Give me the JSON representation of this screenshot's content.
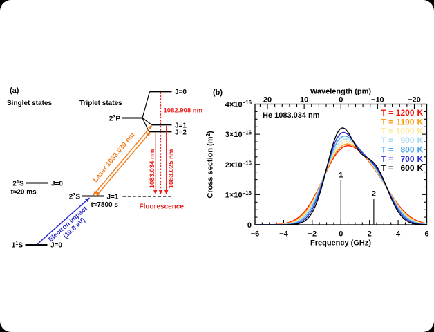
{
  "figure": {
    "background": "#ffffff",
    "outer_background": "#000000"
  },
  "panel_a": {
    "label": "(a)",
    "singlet_header": "Singlet states",
    "triplet_header": "Triplet states",
    "levels": {
      "ground": {
        "term": "1^1^S",
        "j": "J=0"
      },
      "singlet_2s": {
        "term": "2^1^S",
        "j": "J=0",
        "lifetime": "t≈20 ms"
      },
      "triplet_2s": {
        "term": "2^3^S",
        "j": "J=1",
        "lifetime": "t≈7800 s"
      },
      "triplet_2p": {
        "term": "2^3^P",
        "sublevels": [
          "J=0",
          "J=1",
          "J=2"
        ]
      }
    },
    "transitions": {
      "electron_impact": {
        "label_line1": "Electron impact",
        "label_line2": "(19.8 eV)",
        "color": "#2424cc"
      },
      "laser": {
        "label": "Laser 1083.030 nm",
        "color": "#f07d1d"
      },
      "line_908": {
        "label": "1082.908 nm",
        "color": "#e8211c"
      },
      "line_034": {
        "label": "1083.034 nm",
        "color": "#e8211c"
      },
      "line_025": {
        "label": "1083.025 nm",
        "color": "#e8211c"
      },
      "fluorescence": {
        "label": "Fluorescence",
        "color": "#e8211c"
      }
    }
  },
  "panel_b": {
    "label": "(b)",
    "annotation": "He 1083.034 nm",
    "top_axis": {
      "title": "Wavelength (pm)",
      "ticks": [
        {
          "value": 20,
          "label": "20"
        },
        {
          "value": 10,
          "label": "10"
        },
        {
          "value": 0,
          "label": "0"
        },
        {
          "value": -10,
          "label": "−10"
        },
        {
          "value": -20,
          "label": "−20"
        }
      ],
      "pm_per_GHz": -3.899
    },
    "bottom_axis": {
      "title": "Frequency (GHz)",
      "ticks": [
        {
          "value": -6,
          "label": "−6"
        },
        {
          "value": -4,
          "label": "−4"
        },
        {
          "value": -2,
          "label": "−2"
        },
        {
          "value": 0,
          "label": "0"
        },
        {
          "value": 2,
          "label": "2"
        },
        {
          "value": 4,
          "label": "4"
        },
        {
          "value": 6,
          "label": "6"
        }
      ]
    },
    "left_axis": {
      "title": "Cross section (m^2^)",
      "ticks": [
        {
          "value": 0,
          "label": "0"
        },
        {
          "value": 1,
          "label": "1×10^−16^"
        },
        {
          "value": 2,
          "label": "2×10^−16^"
        },
        {
          "value": 3,
          "label": "3×10^−16^"
        },
        {
          "value": 4,
          "label": "4×10^−16^"
        }
      ],
      "unit_scale": "1e-16 m2"
    },
    "markers": [
      {
        "label": "1",
        "frequency_GHz": 0.0,
        "height_1e16_m2": 1.49
      },
      {
        "label": "2",
        "frequency_GHz": 2.3,
        "height_1e16_m2": 0.87
      }
    ]
  },
  "chart_data": {
    "type": "line",
    "title": "He 1083.034 nm",
    "xlabel": "Frequency (GHz)",
    "ylabel": "Cross section (m²)",
    "x2label": "Wavelength (pm)",
    "xlim": [
      -6,
      6
    ],
    "ylim": [
      0,
      4e-16
    ],
    "x2lim_pm": [
      23.4,
      -23.4
    ],
    "grid": false,
    "legend_position": "upper right inside",
    "line_components": [
      {
        "marker_label": "1",
        "offset_GHz": 0.0,
        "relative_strength": 5
      },
      {
        "marker_label": "2",
        "offset_GHz": 2.3,
        "relative_strength": 3
      }
    ],
    "profile_model": {
      "shape": "sum of two Gaussians (Doppler broadened doublet)",
      "gaussian_sigma_at_600K_GHz": 1.0,
      "sigma_scaling": "sqrt(T/600)"
    },
    "series": [
      {
        "name": "T = 1200 K",
        "temperature_K": 1200,
        "color": "#f61004",
        "peak_cross_section_1e16_m2": 2.62
      },
      {
        "name": "T = 1100 K",
        "temperature_K": 1100,
        "color": "#ff9a10",
        "peak_cross_section_1e16_m2": 2.68
      },
      {
        "name": "T = 1000 K",
        "temperature_K": 1000,
        "color": "#ffe896",
        "peak_cross_section_1e16_m2": 2.76
      },
      {
        "name": "T = 900 K",
        "temperature_K": 900,
        "color": "#a6d9f0",
        "peak_cross_section_1e16_m2": 2.84
      },
      {
        "name": "T = 800 K",
        "temperature_K": 800,
        "color": "#47a3ee",
        "peak_cross_section_1e16_m2": 2.94
      },
      {
        "name": "T = 700 K",
        "temperature_K": 700,
        "color": "#2c2fd6",
        "peak_cross_section_1e16_m2": 3.06
      },
      {
        "name": "T = 600 K",
        "temperature_K": 600,
        "color": "#000000",
        "peak_cross_section_1e16_m2": 3.21
      }
    ]
  }
}
